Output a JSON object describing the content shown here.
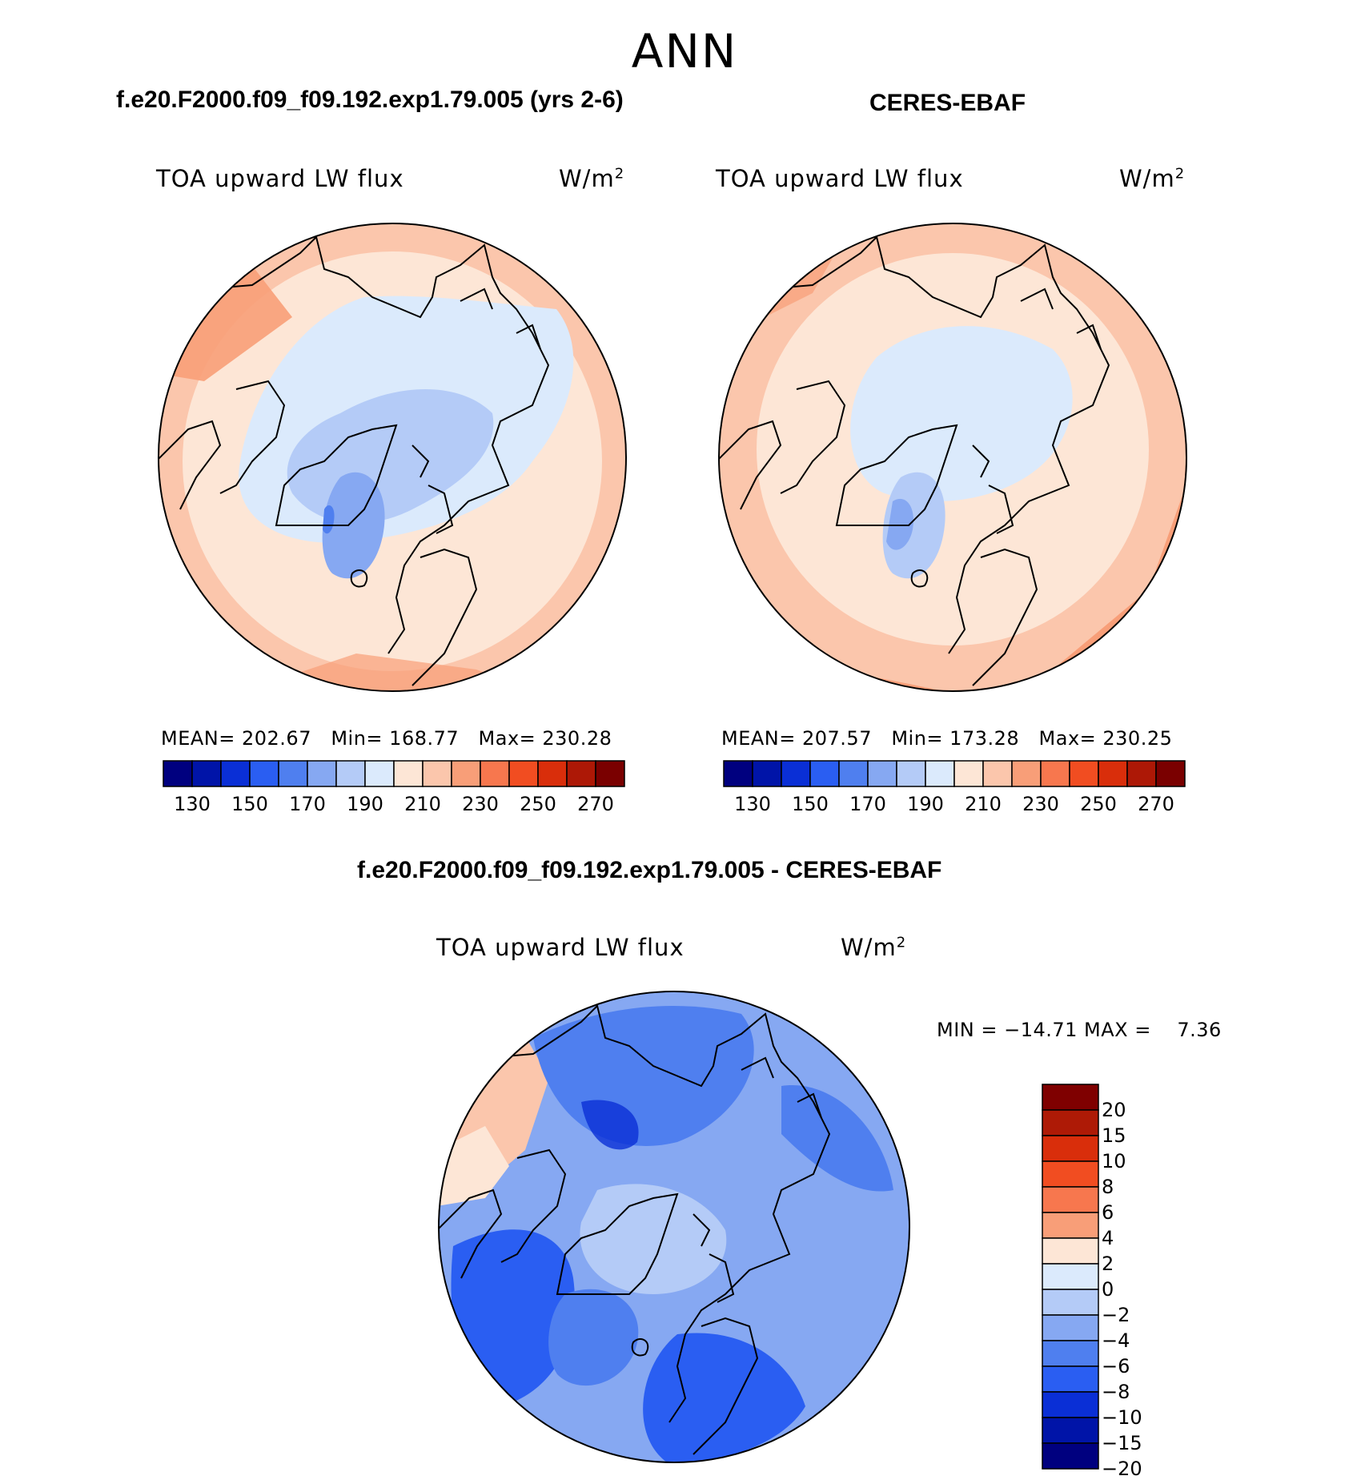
{
  "season": "ANN",
  "panel_a": {
    "title": "f.e20.F2000.f09_f09.192.exp1.79.005 (yrs 2-6)",
    "variable": "TOA upward LW flux",
    "units_base": "W/m",
    "units_exp": "2",
    "stats": "MEAN= 202.67   Min= 168.77   Max= 230.28"
  },
  "panel_b": {
    "title": "CERES-EBAF",
    "variable": "TOA upward LW flux",
    "units_base": "W/m",
    "units_exp": "2",
    "stats": "MEAN= 207.57   Min= 173.28   Max= 230.25"
  },
  "panel_diff": {
    "title": "f.e20.F2000.f09_f09.192.exp1.79.005 - CERES-EBAF",
    "variable": "TOA upward LW flux",
    "units_base": "W/m",
    "units_exp": "2",
    "stats": "MIN = −14.71 MAX =    7.36"
  },
  "colorbar_main": {
    "labels": [
      "130",
      "150",
      "170",
      "190",
      "210",
      "230",
      "250",
      "270"
    ],
    "colors": [
      "#00007f",
      "#0014a8",
      "#0a2fd6",
      "#2a5ef2",
      "#4f7fef",
      "#86a8f2",
      "#b4cbf7",
      "#dbeafc",
      "#fde6d6",
      "#fbc6ac",
      "#f89e78",
      "#f7774e",
      "#f14d21",
      "#d92e0b",
      "#ad1806",
      "#7a0000"
    ]
  },
  "colorbar_diff": {
    "labels": [
      "20",
      "15",
      "10",
      "8",
      "6",
      "4",
      "2",
      "0",
      "−2",
      "−4",
      "−6",
      "−8",
      "−10",
      "−15",
      "−20"
    ],
    "colors": [
      "#7f0000",
      "#ae1a06",
      "#d92e0b",
      "#f14d21",
      "#f7774e",
      "#f89e78",
      "#fde6d6",
      "#dbeafc",
      "#b4cbf7",
      "#86a8f2",
      "#4f7fef",
      "#2a5ef2",
      "#0a2fd6",
      "#0014a8",
      "#00007f"
    ]
  }
}
